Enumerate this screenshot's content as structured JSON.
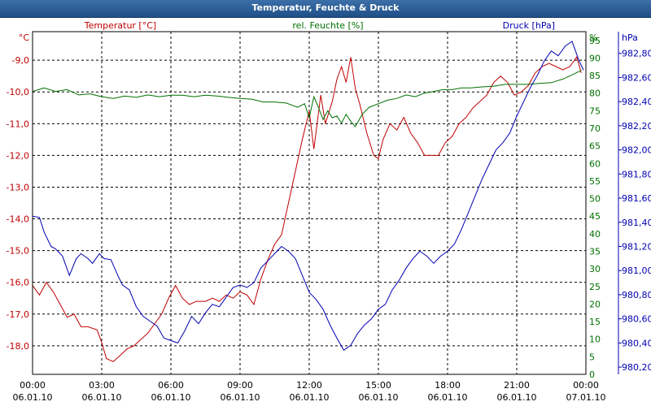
{
  "window": {
    "title": "Temperatur, Feuchte & Druck"
  },
  "colors": {
    "temperature": "#c00000",
    "humidity": "#007000",
    "pressure": "#0000b0",
    "grid": "#000000"
  },
  "chart_data": {
    "type": "line",
    "title": "Temperatur, Feuchte & Druck",
    "grid": true,
    "x": {
      "unit": "hours since 06.01.10 00:00",
      "ticks": [
        {
          "time": "00:00",
          "date": "06.01.10"
        },
        {
          "time": "03:00",
          "date": "06.01.10"
        },
        {
          "time": "06:00",
          "date": "06.01.10"
        },
        {
          "time": "09:00",
          "date": "06.01.10"
        },
        {
          "time": "12:00",
          "date": "06.01.10"
        },
        {
          "time": "15:00",
          "date": "06.01.10"
        },
        {
          "time": "18:00",
          "date": "06.01.10"
        },
        {
          "time": "21:00",
          "date": "06.01.10"
        },
        {
          "time": "00:00",
          "date": "07.01.10"
        }
      ],
      "range": [
        0,
        24
      ]
    },
    "axes": {
      "temperature": {
        "label": "Temperatur [°C]",
        "unit": "°C",
        "range": [
          -18.9,
          -8.1
        ],
        "ticks": [
          "-9,0",
          "-10,0",
          "-11,0",
          "-12,0",
          "-13,0",
          "-14,0",
          "-15,0",
          "-16,0",
          "-17,0",
          "-18,0"
        ]
      },
      "humidity": {
        "label": "rel. Feuchte [%]",
        "unit": "%",
        "range": [
          0,
          97.5
        ],
        "ticks": [
          "95",
          "90",
          "85",
          "80",
          "75",
          "70",
          "65",
          "60",
          "55",
          "50",
          "45",
          "40",
          "35",
          "30",
          "25",
          "20",
          "15",
          "10",
          "5",
          "0"
        ]
      },
      "pressure": {
        "label": "Druck [hPa]",
        "unit": "hPa",
        "range": [
          980.14,
          982.98
        ],
        "ticks": [
          "982,80",
          "982,60",
          "982,40",
          "982,20",
          "982,00",
          "981,80",
          "981,60",
          "981,40",
          "981,20",
          "981,00",
          "980,80",
          "980,60",
          "980,40",
          "980,20"
        ]
      }
    },
    "series": [
      {
        "name": "Temperatur [°C]",
        "axis": "temperature",
        "points": [
          [
            0,
            -16.1
          ],
          [
            0.3,
            -16.4
          ],
          [
            0.6,
            -16.0
          ],
          [
            0.9,
            -16.3
          ],
          [
            1.2,
            -16.7
          ],
          [
            1.5,
            -17.1
          ],
          [
            1.8,
            -17.0
          ],
          [
            2.1,
            -17.4
          ],
          [
            2.4,
            -17.4
          ],
          [
            2.8,
            -17.5
          ],
          [
            3.0,
            -17.9
          ],
          [
            3.2,
            -18.4
          ],
          [
            3.5,
            -18.5
          ],
          [
            3.8,
            -18.3
          ],
          [
            4.1,
            -18.1
          ],
          [
            4.4,
            -18.0
          ],
          [
            4.7,
            -17.8
          ],
          [
            5.0,
            -17.6
          ],
          [
            5.3,
            -17.3
          ],
          [
            5.6,
            -17.0
          ],
          [
            5.9,
            -16.5
          ],
          [
            6.2,
            -16.1
          ],
          [
            6.5,
            -16.5
          ],
          [
            6.8,
            -16.7
          ],
          [
            7.1,
            -16.6
          ],
          [
            7.5,
            -16.6
          ],
          [
            7.8,
            -16.5
          ],
          [
            8.1,
            -16.6
          ],
          [
            8.4,
            -16.4
          ],
          [
            8.7,
            -16.5
          ],
          [
            9.0,
            -16.3
          ],
          [
            9.3,
            -16.4
          ],
          [
            9.6,
            -16.7
          ],
          [
            9.9,
            -15.9
          ],
          [
            10.2,
            -15.3
          ],
          [
            10.5,
            -14.8
          ],
          [
            10.8,
            -14.5
          ],
          [
            11.1,
            -13.5
          ],
          [
            11.4,
            -12.5
          ],
          [
            11.7,
            -11.5
          ],
          [
            12.0,
            -10.6
          ],
          [
            12.2,
            -11.8
          ],
          [
            12.5,
            -10.1
          ],
          [
            12.7,
            -11.0
          ],
          [
            13.0,
            -10.3
          ],
          [
            13.2,
            -9.6
          ],
          [
            13.4,
            -9.2
          ],
          [
            13.6,
            -9.7
          ],
          [
            13.8,
            -8.9
          ],
          [
            14.0,
            -9.9
          ],
          [
            14.2,
            -10.4
          ],
          [
            14.5,
            -11.3
          ],
          [
            14.8,
            -12.0
          ],
          [
            15.0,
            -12.1
          ],
          [
            15.2,
            -11.5
          ],
          [
            15.5,
            -11.0
          ],
          [
            15.8,
            -11.2
          ],
          [
            16.1,
            -10.8
          ],
          [
            16.4,
            -11.3
          ],
          [
            16.7,
            -11.6
          ],
          [
            17.0,
            -12.0
          ],
          [
            17.3,
            -12.0
          ],
          [
            17.6,
            -12.0
          ],
          [
            17.9,
            -11.6
          ],
          [
            18.2,
            -11.4
          ],
          [
            18.5,
            -11.0
          ],
          [
            18.8,
            -10.8
          ],
          [
            19.1,
            -10.5
          ],
          [
            19.4,
            -10.3
          ],
          [
            19.7,
            -10.1
          ],
          [
            20.0,
            -9.7
          ],
          [
            20.3,
            -9.5
          ],
          [
            20.6,
            -9.7
          ],
          [
            20.9,
            -10.1
          ],
          [
            21.2,
            -10.0
          ],
          [
            21.5,
            -9.8
          ],
          [
            21.8,
            -9.4
          ],
          [
            22.1,
            -9.2
          ],
          [
            22.4,
            -9.1
          ],
          [
            22.7,
            -9.2
          ],
          [
            23.0,
            -9.3
          ],
          [
            23.3,
            -9.2
          ],
          [
            23.6,
            -8.9
          ],
          [
            23.8,
            -9.4
          ]
        ]
      },
      {
        "name": "rel. Feuchte [%]",
        "axis": "humidity",
        "points": [
          [
            0,
            80.5
          ],
          [
            0.5,
            81.5
          ],
          [
            1.0,
            80.5
          ],
          [
            1.5,
            81.0
          ],
          [
            2.0,
            79.5
          ],
          [
            2.5,
            79.8
          ],
          [
            3.0,
            79.0
          ],
          [
            3.5,
            78.5
          ],
          [
            4.0,
            79.2
          ],
          [
            4.5,
            78.8
          ],
          [
            5.0,
            79.5
          ],
          [
            5.5,
            79.0
          ],
          [
            6.0,
            79.4
          ],
          [
            6.5,
            79.4
          ],
          [
            7.0,
            79.0
          ],
          [
            7.5,
            79.4
          ],
          [
            8.0,
            79.2
          ],
          [
            8.5,
            78.8
          ],
          [
            9.0,
            78.5
          ],
          [
            9.5,
            78.3
          ],
          [
            10.0,
            77.5
          ],
          [
            10.5,
            77.5
          ],
          [
            11.0,
            77.2
          ],
          [
            11.5,
            76.0
          ],
          [
            11.8,
            77.0
          ],
          [
            12.0,
            73.0
          ],
          [
            12.2,
            79.0
          ],
          [
            12.4,
            76.0
          ],
          [
            12.6,
            72.5
          ],
          [
            12.8,
            75.0
          ],
          [
            13.0,
            73.0
          ],
          [
            13.2,
            73.5
          ],
          [
            13.4,
            71.5
          ],
          [
            13.6,
            74.0
          ],
          [
            13.8,
            72.0
          ],
          [
            14.0,
            70.5
          ],
          [
            14.3,
            74.0
          ],
          [
            14.6,
            76.0
          ],
          [
            15.0,
            77.0
          ],
          [
            15.4,
            78.0
          ],
          [
            15.8,
            78.5
          ],
          [
            16.2,
            79.5
          ],
          [
            16.6,
            79.0
          ],
          [
            17.0,
            80.0
          ],
          [
            17.4,
            80.5
          ],
          [
            17.8,
            81.0
          ],
          [
            18.2,
            81.0
          ],
          [
            18.6,
            81.5
          ],
          [
            19.0,
            81.5
          ],
          [
            19.5,
            81.8
          ],
          [
            20.0,
            82.0
          ],
          [
            20.5,
            82.5
          ],
          [
            21.0,
            82.5
          ],
          [
            21.5,
            82.5
          ],
          [
            22.0,
            82.8
          ],
          [
            22.5,
            83.0
          ],
          [
            23.0,
            84.0
          ],
          [
            23.5,
            85.5
          ],
          [
            23.8,
            86.5
          ]
        ]
      },
      {
        "name": "Druck [hPa]",
        "axis": "pressure",
        "points": [
          [
            0,
            981.45
          ],
          [
            0.3,
            981.44
          ],
          [
            0.5,
            981.32
          ],
          [
            0.8,
            981.2
          ],
          [
            1.0,
            981.18
          ],
          [
            1.3,
            981.12
          ],
          [
            1.6,
            980.96
          ],
          [
            1.9,
            981.1
          ],
          [
            2.1,
            981.14
          ],
          [
            2.4,
            981.1
          ],
          [
            2.6,
            981.06
          ],
          [
            2.9,
            981.14
          ],
          [
            3.1,
            981.1
          ],
          [
            3.4,
            981.09
          ],
          [
            3.7,
            980.96
          ],
          [
            3.9,
            980.88
          ],
          [
            4.2,
            980.84
          ],
          [
            4.5,
            980.7
          ],
          [
            4.8,
            980.62
          ],
          [
            5.1,
            980.58
          ],
          [
            5.4,
            980.54
          ],
          [
            5.7,
            980.44
          ],
          [
            6.0,
            980.42
          ],
          [
            6.3,
            980.4
          ],
          [
            6.6,
            980.5
          ],
          [
            6.9,
            980.62
          ],
          [
            7.2,
            980.56
          ],
          [
            7.5,
            980.65
          ],
          [
            7.8,
            980.72
          ],
          [
            8.1,
            980.7
          ],
          [
            8.4,
            980.78
          ],
          [
            8.7,
            980.86
          ],
          [
            9.0,
            980.88
          ],
          [
            9.3,
            980.86
          ],
          [
            9.6,
            980.9
          ],
          [
            9.9,
            981.02
          ],
          [
            10.2,
            981.08
          ],
          [
            10.5,
            981.14
          ],
          [
            10.8,
            981.2
          ],
          [
            11.1,
            981.16
          ],
          [
            11.4,
            981.1
          ],
          [
            11.7,
            980.96
          ],
          [
            12.0,
            980.82
          ],
          [
            12.3,
            980.76
          ],
          [
            12.6,
            980.68
          ],
          [
            12.9,
            980.55
          ],
          [
            13.2,
            980.44
          ],
          [
            13.5,
            980.34
          ],
          [
            13.8,
            980.38
          ],
          [
            14.1,
            980.48
          ],
          [
            14.4,
            980.55
          ],
          [
            14.7,
            980.6
          ],
          [
            15.0,
            980.68
          ],
          [
            15.3,
            980.72
          ],
          [
            15.6,
            980.84
          ],
          [
            15.9,
            980.92
          ],
          [
            16.2,
            981.02
          ],
          [
            16.5,
            981.1
          ],
          [
            16.8,
            981.16
          ],
          [
            17.1,
            981.12
          ],
          [
            17.4,
            981.06
          ],
          [
            17.7,
            981.12
          ],
          [
            18.0,
            981.16
          ],
          [
            18.3,
            981.22
          ],
          [
            18.6,
            981.34
          ],
          [
            18.9,
            981.48
          ],
          [
            19.2,
            981.62
          ],
          [
            19.5,
            981.76
          ],
          [
            19.8,
            981.88
          ],
          [
            20.1,
            982.0
          ],
          [
            20.4,
            982.06
          ],
          [
            20.7,
            982.14
          ],
          [
            21.0,
            982.28
          ],
          [
            21.3,
            982.4
          ],
          [
            21.6,
            982.52
          ],
          [
            21.9,
            982.62
          ],
          [
            22.2,
            982.74
          ],
          [
            22.5,
            982.82
          ],
          [
            22.8,
            982.78
          ],
          [
            23.1,
            982.86
          ],
          [
            23.4,
            982.9
          ],
          [
            23.7,
            982.74
          ],
          [
            23.9,
            982.66
          ]
        ]
      }
    ]
  }
}
